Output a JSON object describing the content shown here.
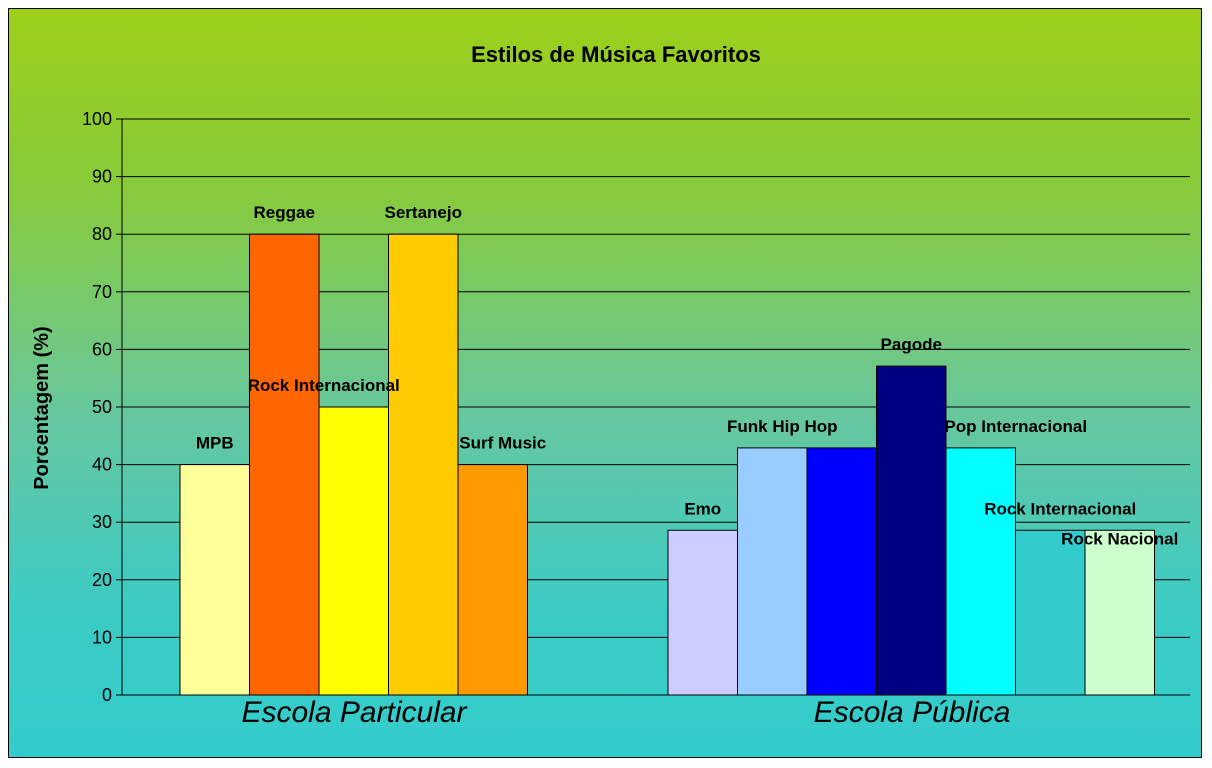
{
  "chart_data": {
    "type": "bar",
    "title": "Estilos de Música Favoritos",
    "xlabel": "",
    "ylabel": "Porcentagem (%)",
    "ylim": [
      0,
      100
    ],
    "yticks": [
      0,
      10,
      20,
      30,
      40,
      50,
      60,
      70,
      80,
      90,
      100
    ],
    "grid": true,
    "groups": [
      {
        "name": "Escola Particular",
        "bars": [
          {
            "label": "MPB",
            "value": 40,
            "color": "#ffff99"
          },
          {
            "label": "Reggae",
            "value": 80,
            "color": "#ff6600"
          },
          {
            "label": "Rock Internacional",
            "value": 50,
            "color": "#ffff00"
          },
          {
            "label": "Sertanejo",
            "value": 80,
            "color": "#ffcc00"
          },
          {
            "label": "Surf Music",
            "value": 40,
            "color": "#ff9900"
          }
        ]
      },
      {
        "name": "Escola Pública",
        "bars": [
          {
            "label": "Emo",
            "value": 28.6,
            "color": "#ccccff"
          },
          {
            "label": "Funk Hip Hop",
            "value": 42.9,
            "color": "#99ccff"
          },
          {
            "label": "",
            "value": 42.9,
            "color": "#0000ff"
          },
          {
            "label": "Pagode",
            "value": 57.1,
            "color": "#000080"
          },
          {
            "label": "Pop Internacional",
            "value": 42.9,
            "color": "#00ffff"
          },
          {
            "label": "Rock Internacional",
            "value": 28.6,
            "color": "#33cccc"
          },
          {
            "label": "Rock Nacional",
            "value": 28.6,
            "color": "#ccffcc"
          }
        ]
      }
    ]
  }
}
